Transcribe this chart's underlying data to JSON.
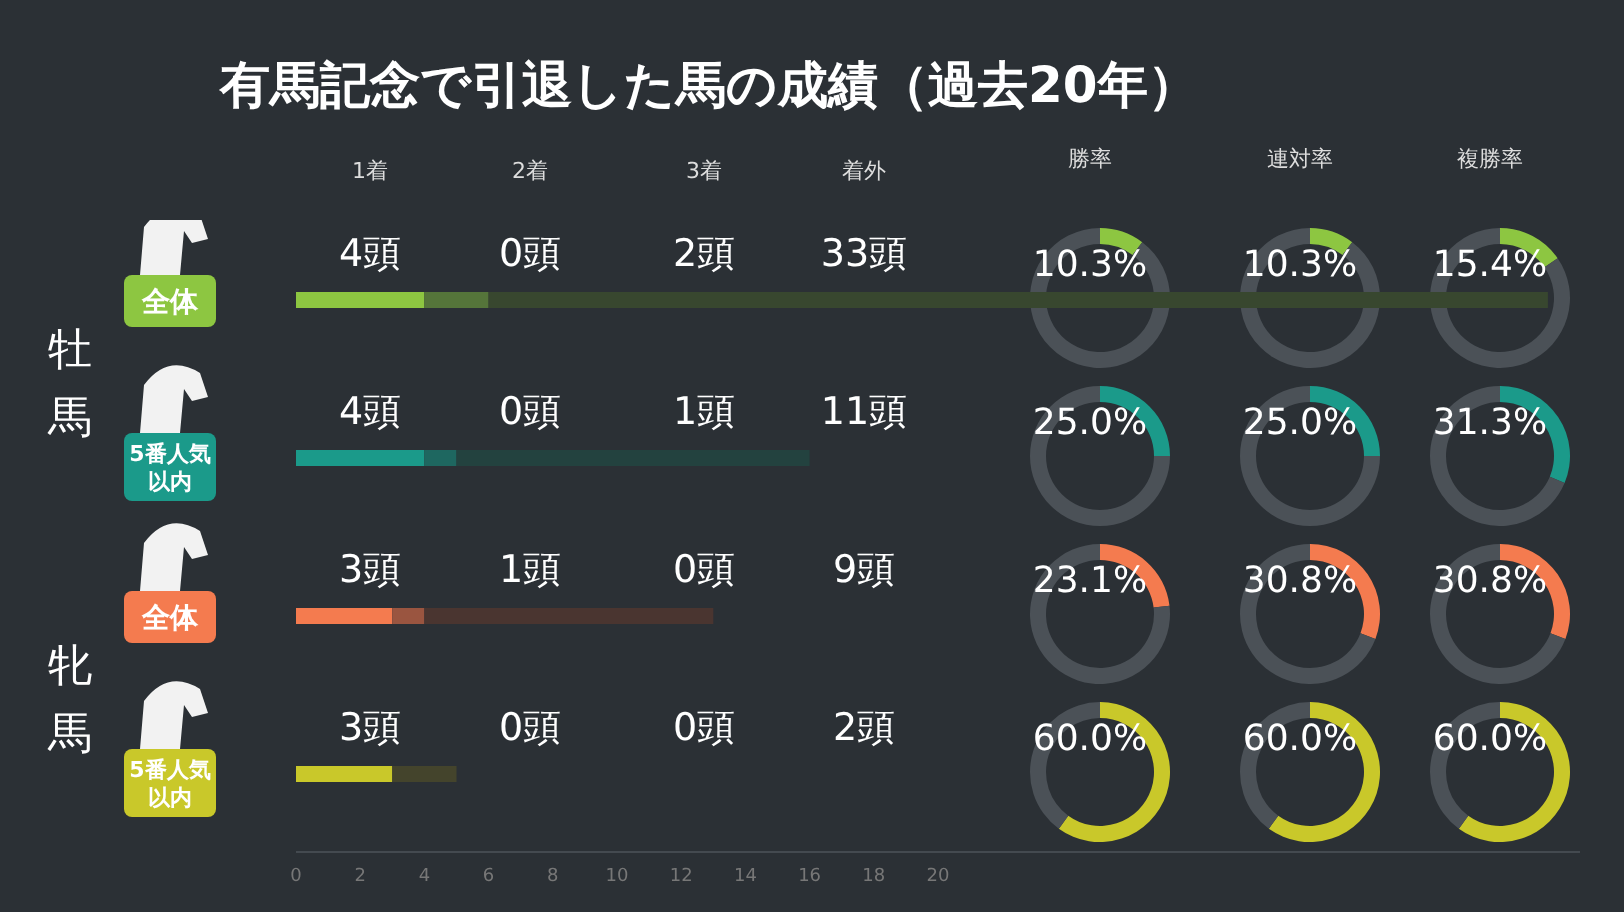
{
  "chart_data": [
    {
      "type": "bar",
      "orientation": "horizontal",
      "stacked": true,
      "title": "有馬記念で引退した馬の成績（過去20年）",
      "categories": [
        "全体",
        "5番人気以内",
        "全体",
        "5番人気以内"
      ],
      "annotations": [
        "牡馬",
        "牝馬"
      ],
      "xlim": [
        0,
        40
      ],
      "xticks": [
        0,
        2,
        4,
        6,
        8,
        10,
        12,
        14,
        16,
        18,
        20
      ],
      "series": [
        {
          "colors": [
            "#8dc641",
            "#1b9a8a",
            "#f47b4f",
            "#c9c82a"
          ],
          "values": [
            4,
            4,
            3,
            3
          ]
        },
        {
          "colors": [
            "#55753a",
            "#1e6760",
            "#9a5540",
            "#7c7b2e"
          ],
          "values": [
            0,
            0,
            1,
            0
          ]
        },
        {
          "colors": [
            "#55753a",
            "#1e6760",
            "#9a5540",
            "#7c7b2e"
          ],
          "values": [
            2,
            1,
            0,
            0
          ]
        },
        {
          "colors": [
            "#38472f",
            "#23423f",
            "#4a3530",
            "#44442c"
          ],
          "values": [
            33,
            11,
            9,
            2
          ]
        }
      ]
    },
    {
      "type": "other",
      "annotations": [
        "1着",
        "2着",
        "3着",
        "着外",
        "4頭",
        "0頭",
        "2頭",
        "33頭",
        "4頭",
        "0頭",
        "1頭",
        "11頭",
        "3頭",
        "1頭",
        "0頭",
        "9頭",
        "3頭",
        "0頭",
        "0頭",
        "2頭"
      ]
    },
    {
      "type": "donut",
      "title": "勝率",
      "categories": [
        null,
        null
      ],
      "values": [
        10.3,
        89.7
      ],
      "colors": [
        "#8dc641",
        "#4b5157"
      ],
      "value_labels": [
        "10.3%",
        null
      ]
    },
    {
      "type": "donut",
      "title": "連対率",
      "categories": [
        null,
        null
      ],
      "values": [
        10.3,
        89.7
      ],
      "colors": [
        "#8dc641",
        "#4b5157"
      ],
      "value_labels": [
        "10.3%",
        null
      ]
    },
    {
      "type": "donut",
      "title": "複勝率",
      "categories": [
        null,
        null
      ],
      "values": [
        15.4,
        84.6
      ],
      "colors": [
        "#8dc641",
        "#4b5157"
      ],
      "value_labels": [
        "15.4%",
        null
      ]
    },
    {
      "type": "donut",
      "categories": [
        null,
        null
      ],
      "values": [
        25.0,
        75.0
      ],
      "colors": [
        "#1b9a8a",
        "#4b5157"
      ],
      "value_labels": [
        "25.0%",
        null
      ]
    },
    {
      "type": "donut",
      "categories": [
        null,
        null
      ],
      "values": [
        25.0,
        75.0
      ],
      "colors": [
        "#1b9a8a",
        "#4b5157"
      ],
      "value_labels": [
        "25.0%",
        null
      ]
    },
    {
      "type": "donut",
      "categories": [
        null,
        null
      ],
      "values": [
        31.3,
        68.7
      ],
      "colors": [
        "#1b9a8a",
        "#4b5157"
      ],
      "value_labels": [
        "31.3%",
        null
      ]
    },
    {
      "type": "donut",
      "categories": [
        null,
        null
      ],
      "values": [
        23.1,
        76.9
      ],
      "colors": [
        "#f47b4f",
        "#4b5157"
      ],
      "value_labels": [
        "23.1%",
        null
      ]
    },
    {
      "type": "donut",
      "categories": [
        null,
        null
      ],
      "values": [
        30.8,
        69.2
      ],
      "colors": [
        "#f47b4f",
        "#4b5157"
      ],
      "value_labels": [
        "30.8%",
        null
      ]
    },
    {
      "type": "donut",
      "categories": [
        null,
        null
      ],
      "values": [
        30.8,
        69.2
      ],
      "colors": [
        "#f47b4f",
        "#4b5157"
      ],
      "value_labels": [
        "30.8%",
        null
      ]
    },
    {
      "type": "donut",
      "categories": [
        null,
        null
      ],
      "values": [
        60.0,
        40.0
      ],
      "colors": [
        "#c9c82a",
        "#4b5157"
      ],
      "value_labels": [
        "60.0%",
        null
      ]
    },
    {
      "type": "donut",
      "categories": [
        null,
        null
      ],
      "values": [
        60.0,
        40.0
      ],
      "colors": [
        "#c9c82a",
        "#4b5157"
      ],
      "value_labels": [
        "60.0%",
        null
      ]
    },
    {
      "type": "donut",
      "categories": [
        null,
        null
      ],
      "values": [
        60.0,
        40.0
      ],
      "colors": [
        "#c9c82a",
        "#4b5157"
      ],
      "value_labels": [
        "60.0%",
        null
      ]
    }
  ]
}
